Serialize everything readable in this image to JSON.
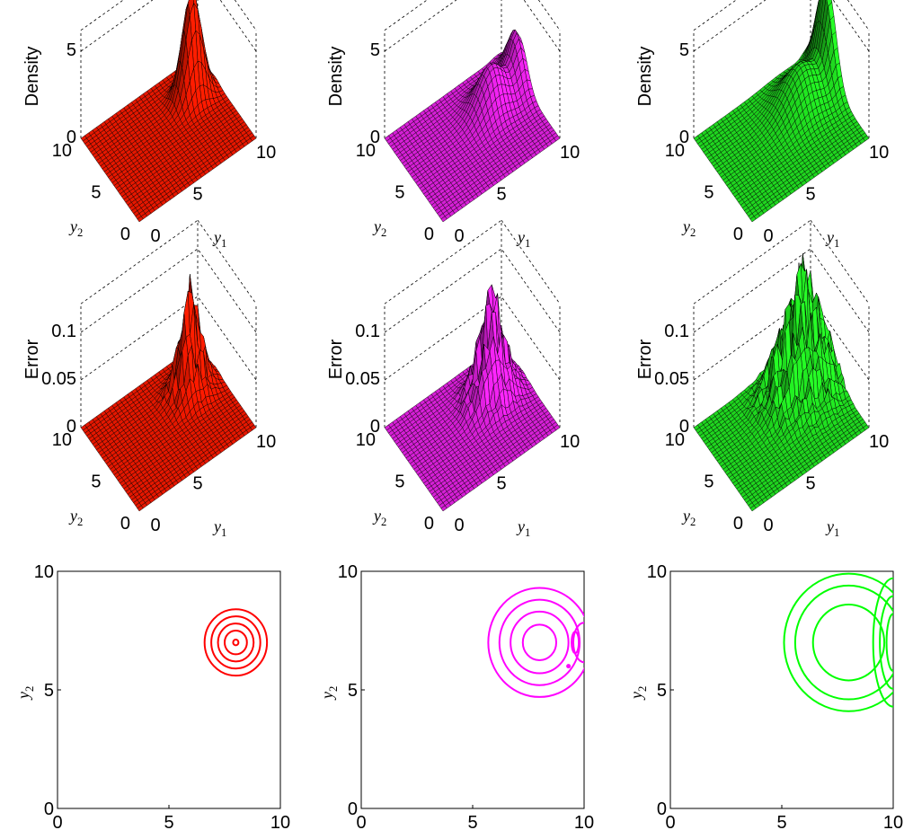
{
  "figure": {
    "columns": [
      {
        "name": "red",
        "fill": "#ff1a00",
        "line": "#ff0000"
      },
      {
        "name": "magenta",
        "fill": "#ee22ee",
        "line": "#ff00ff"
      },
      {
        "name": "green",
        "fill": "#22ee22",
        "line": "#00ff00"
      }
    ]
  },
  "chart_data": [
    {
      "type": "surface",
      "row": 0,
      "col": 0,
      "zlabel": "Density",
      "xlabel": "y1",
      "ylabel": "y2",
      "xlim": [
        0,
        10
      ],
      "ylim": [
        0,
        10
      ],
      "zlim": [
        0,
        5
      ],
      "ztick_labels": [
        "0",
        "5"
      ],
      "x_ticks": [
        "0",
        "5",
        "10"
      ],
      "y_ticks": [
        "0",
        "5",
        "10"
      ],
      "components": [
        {
          "cx": 8,
          "cy": 7,
          "sx": 0.75,
          "sy": 0.75,
          "h": 6.1
        }
      ]
    },
    {
      "type": "surface",
      "row": 0,
      "col": 1,
      "zlabel": "Density",
      "xlabel": "y1",
      "ylabel": "y2",
      "xlim": [
        0,
        10
      ],
      "ylim": [
        0,
        10
      ],
      "zlim": [
        0,
        5
      ],
      "ztick_labels": [
        "0",
        "5"
      ],
      "x_ticks": [
        "0",
        "5",
        "10"
      ],
      "y_ticks": [
        "0",
        "5",
        "10"
      ],
      "components": [
        {
          "cx": 7.3,
          "cy": 6.3,
          "sx": 1.15,
          "sy": 1.15,
          "h": 2.5
        },
        {
          "cx": 9.7,
          "cy": 6.9,
          "sx": 0.55,
          "sy": 1.3,
          "h": 2.8
        }
      ]
    },
    {
      "type": "surface",
      "row": 0,
      "col": 2,
      "zlabel": "Density",
      "xlabel": "y1",
      "ylabel": "y2",
      "xlim": [
        0,
        10
      ],
      "ylim": [
        0,
        10
      ],
      "zlim": [
        0,
        5
      ],
      "ztick_labels": [
        "0",
        "5"
      ],
      "x_ticks": [
        "0",
        "5",
        "10"
      ],
      "y_ticks": [
        "0",
        "5",
        "10"
      ],
      "components": [
        {
          "cx": 7.5,
          "cy": 6.5,
          "sx": 1.5,
          "sy": 1.5,
          "h": 2.3
        },
        {
          "cx": 9.9,
          "cy": 7.1,
          "sx": 0.5,
          "sy": 1.4,
          "h": 5.0
        }
      ]
    },
    {
      "type": "surface",
      "row": 1,
      "col": 0,
      "zlabel": "Error",
      "xlabel": "y1",
      "ylabel": "y2",
      "xlim": [
        0,
        10
      ],
      "ylim": [
        0,
        10
      ],
      "zlim": [
        0,
        0.1
      ],
      "ztick_labels": [
        "0",
        "0.05",
        "0.1"
      ],
      "x_ticks": [
        "0",
        "5",
        "10"
      ],
      "y_ticks": [
        "0",
        "5",
        "10"
      ],
      "components": [
        {
          "cx": 7.6,
          "cy": 6.6,
          "sx": 0.9,
          "sy": 0.9,
          "h": 0.075
        }
      ],
      "noise": 0.035
    },
    {
      "type": "surface",
      "row": 1,
      "col": 1,
      "zlabel": "Error",
      "xlabel": "y1",
      "ylabel": "y2",
      "xlim": [
        0,
        10
      ],
      "ylim": [
        0,
        10
      ],
      "zlim": [
        0,
        0.1
      ],
      "ztick_labels": [
        "0",
        "0.05",
        "0.1"
      ],
      "x_ticks": [
        "0",
        "5",
        "10"
      ],
      "y_ticks": [
        "0",
        "5",
        "10"
      ],
      "components": [
        {
          "cx": 7.2,
          "cy": 6.2,
          "sx": 1.1,
          "sy": 1.1,
          "h": 0.08
        }
      ],
      "noise": 0.03
    },
    {
      "type": "surface",
      "row": 1,
      "col": 2,
      "zlabel": "Error",
      "xlabel": "y1",
      "ylabel": "y2",
      "xlim": [
        0,
        10
      ],
      "ylim": [
        0,
        10
      ],
      "zlim": [
        0,
        0.1
      ],
      "ztick_labels": [
        "0",
        "0.05",
        "0.1"
      ],
      "x_ticks": [
        "0",
        "5",
        "10"
      ],
      "y_ticks": [
        "0",
        "5",
        "10"
      ],
      "components": [
        {
          "cx": 7.5,
          "cy": 6.6,
          "sx": 1.6,
          "sy": 1.6,
          "h": 0.09
        }
      ],
      "noise": 0.04
    },
    {
      "type": "contour",
      "row": 2,
      "col": 0,
      "xlabel": "y1",
      "ylabel": "y2",
      "xlim": [
        0,
        10
      ],
      "ylim": [
        0,
        10
      ],
      "x_ticks": [
        "0",
        "5",
        "10"
      ],
      "y_ticks": [
        "0",
        "5",
        "10"
      ],
      "rings": [
        {
          "cx": 8,
          "cy": 7,
          "r": [
            1.4,
            1.1,
            0.8,
            0.5,
            0.12
          ]
        }
      ]
    },
    {
      "type": "contour",
      "row": 2,
      "col": 1,
      "xlabel": "y1",
      "ylabel": "y2",
      "xlim": [
        0,
        10
      ],
      "ylim": [
        0,
        10
      ],
      "x_ticks": [
        "0",
        "5",
        "10"
      ],
      "y_ticks": [
        "0",
        "5",
        "10"
      ],
      "rings": [
        {
          "cx": 8,
          "cy": 7,
          "r": [
            2.3,
            1.8,
            1.3,
            0.75
          ]
        }
      ]
    },
    {
      "type": "contour",
      "row": 2,
      "col": 2,
      "xlabel": "y1",
      "ylabel": "y2",
      "xlim": [
        0,
        10
      ],
      "ylim": [
        0,
        10
      ],
      "x_ticks": [
        "0",
        "5",
        "10"
      ],
      "y_ticks": [
        "0",
        "5",
        "10"
      ],
      "rings": [
        {
          "cx": 8,
          "cy": 7,
          "r": [
            2.9,
            2.4,
            1.6
          ]
        }
      ]
    }
  ]
}
